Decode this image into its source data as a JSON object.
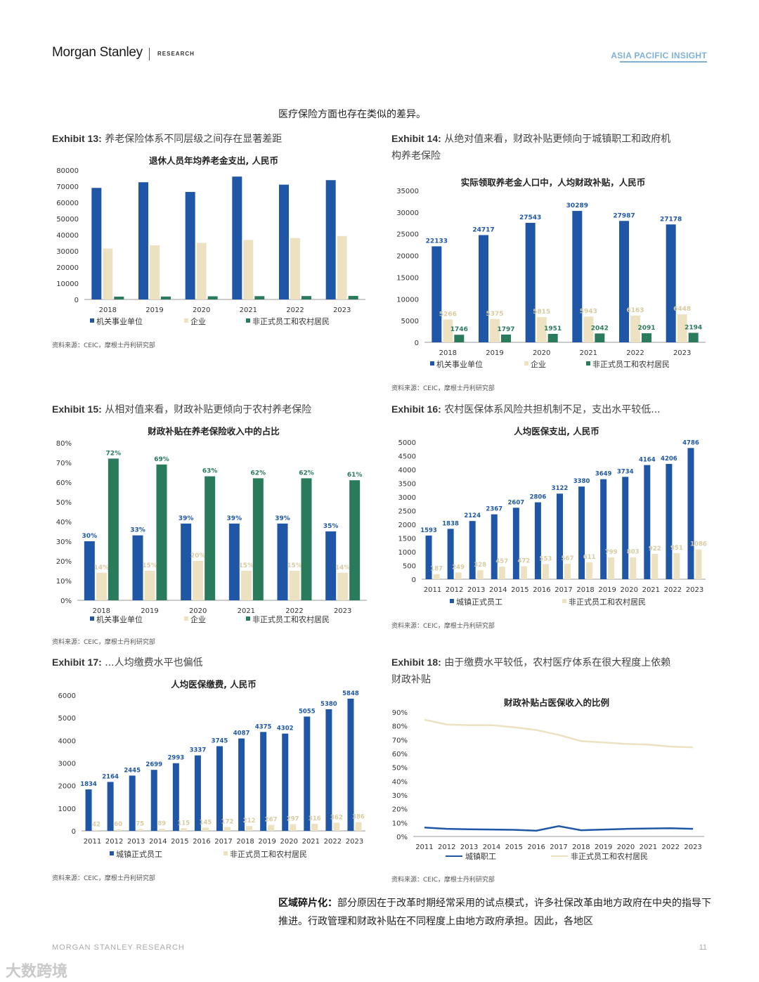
{
  "header": {
    "brand": "Morgan Stanley",
    "research": "RESEARCH",
    "insight": "ASIA PACIFIC INSIGHT"
  },
  "intro": "医疗保险方面也存在类似的差异。",
  "exhibits": {
    "e13": {
      "label": "Exhibit 13:",
      "title": "养老保险体系不同层级之间存在显著差距",
      "source": "资料来源：CEIC，摩根士丹利研究部"
    },
    "e14": {
      "label": "Exhibit 14:",
      "title": "从绝对值来看，财政补贴更倾向于城镇职工和政府机",
      "title2": "构养老保险",
      "source": "资料来源：CEIC，摩根士丹利研究部"
    },
    "e15": {
      "label": "Exhibit 15:",
      "title": "从相对值来看，财政补贴更倾向于农村养老保险",
      "source": "资料来源：CEIC，摩根士丹利研究部"
    },
    "e16": {
      "label": "Exhibit 16:",
      "title": "农村医保体系风险共担机制不足，支出水平较低...",
      "source": "资料来源：CEIC，摩根士丹利研究部"
    },
    "e17": {
      "label": "Exhibit 17:",
      "title": "...人均缴费水平也偏低",
      "source": "资料来源：CEIC，摩根士丹利研究部"
    },
    "e18": {
      "label": "Exhibit 18:",
      "title": "由于缴费水平较低，农村医疗体系在很大程度上依赖",
      "title2": "财政补贴",
      "source": "资料来源：CEIC，摩根士丹利研究部"
    }
  },
  "chart_data": [
    {
      "id": "e13",
      "type": "bar",
      "title": "退休人员年均养老金支出, 人民币",
      "categories": [
        "2018",
        "2019",
        "2020",
        "2021",
        "2022",
        "2023"
      ],
      "series": [
        {
          "name": "机关事业单位",
          "values": [
            69000,
            72500,
            66500,
            76000,
            71000,
            73800
          ]
        },
        {
          "name": "企业",
          "values": [
            31500,
            33500,
            35000,
            36800,
            38000,
            39200
          ]
        },
        {
          "name": "非正式员工和农村居民",
          "values": [
            1746,
            1797,
            1951,
            2042,
            2091,
            2194
          ]
        }
      ],
      "ylim": [
        0,
        80000
      ],
      "yticks": [
        "0",
        "10000",
        "20000",
        "30000",
        "40000",
        "50000",
        "60000",
        "70000",
        "80000"
      ],
      "legend": "bottom",
      "colors": [
        "#1f57a6",
        "#ece1c0",
        "#2a7a5c"
      ]
    },
    {
      "id": "e14",
      "type": "bar",
      "title": "实际领取养老金人口中，人均财政补贴，人民币",
      "categories": [
        "2018",
        "2019",
        "2020",
        "2021",
        "2022",
        "2023"
      ],
      "series": [
        {
          "name": "机关事业单位",
          "values": [
            22133,
            24717,
            27543,
            30289,
            27987,
            27178
          ],
          "labels": [
            "22133",
            "24717",
            "27543",
            "30289",
            "27987",
            "27178"
          ]
        },
        {
          "name": "企业",
          "values": [
            5266,
            5375,
            5815,
            5943,
            6163,
            6448
          ],
          "labels": [
            "5266",
            "5375",
            "5815",
            "5943",
            "6163",
            "6448"
          ]
        },
        {
          "name": "非正式员工和农村居民",
          "values": [
            1746,
            1797,
            1951,
            2042,
            2091,
            2194
          ],
          "labels": [
            "1746",
            "1797",
            "1951",
            "2042",
            "2091",
            "2194"
          ]
        }
      ],
      "ylim": [
        0,
        35000
      ],
      "yticks": [
        "0",
        "5000",
        "10000",
        "15000",
        "20000",
        "25000",
        "30000",
        "35000"
      ],
      "legend": "bottom",
      "colors": [
        "#1f57a6",
        "#ece1c0",
        "#2a7a5c"
      ]
    },
    {
      "id": "e15",
      "type": "bar",
      "title": "财政补贴在养老保险收入中的占比",
      "categories": [
        "2018",
        "2019",
        "2020",
        "2021",
        "2022",
        "2023"
      ],
      "series": [
        {
          "name": "机关事业单位",
          "values": [
            30,
            33,
            39,
            39,
            39,
            35
          ],
          "labels": [
            "30%",
            "33%",
            "39%",
            "39%",
            "39%",
            "35%"
          ]
        },
        {
          "name": "企业",
          "values": [
            14,
            15,
            20,
            15,
            15,
            14
          ],
          "labels": [
            "14%",
            "15%",
            "20%",
            "15%",
            "15%",
            "14%"
          ]
        },
        {
          "name": "非正式员工和农村居民",
          "values": [
            72,
            69,
            63,
            62,
            62,
            61
          ],
          "labels": [
            "72%",
            "69%",
            "63%",
            "62%",
            "62%",
            "61%"
          ]
        }
      ],
      "ylim": [
        0,
        80
      ],
      "yticks": [
        "0%",
        "10%",
        "20%",
        "30%",
        "40%",
        "50%",
        "60%",
        "70%",
        "80%"
      ],
      "legend": "bottom",
      "colors": [
        "#1f57a6",
        "#ece1c0",
        "#2a7a5c"
      ]
    },
    {
      "id": "e16",
      "type": "bar",
      "title": "人均医保支出, 人民币",
      "categories": [
        "2011",
        "2012",
        "2013",
        "2014",
        "2015",
        "2016",
        "2017",
        "2018",
        "2019",
        "2020",
        "2021",
        "2022",
        "2023"
      ],
      "series": [
        {
          "name": "城镇正式员工",
          "values": [
            1593,
            1838,
            2124,
            2367,
            2607,
            2806,
            3122,
            3380,
            3649,
            3734,
            4164,
            4206,
            4786
          ],
          "labels": [
            "1593",
            "1838",
            "2124",
            "2367",
            "2607",
            "2806",
            "3122",
            "3380",
            "3649",
            "3734",
            "4164",
            "4206",
            "4786"
          ]
        },
        {
          "name": "非正式员工和农村居民",
          "values": [
            187,
            249,
            328,
            457,
            472,
            553,
            567,
            611,
            799,
            803,
            922,
            951,
            1086
          ],
          "labels": [
            "187",
            "249",
            "328",
            "457",
            "472",
            "553",
            "567",
            "611",
            "799",
            "803",
            "922",
            "951",
            "1086"
          ]
        }
      ],
      "ylim": [
        0,
        5000
      ],
      "yticks": [
        "0",
        "500",
        "1000",
        "1500",
        "2000",
        "2500",
        "3000",
        "3500",
        "4000",
        "4500",
        "5000"
      ],
      "legend": "bottom",
      "colors": [
        "#1f57a6",
        "#ece1c0"
      ]
    },
    {
      "id": "e17",
      "type": "bar",
      "title": "人均医保缴费, 人民币",
      "categories": [
        "2011",
        "2012",
        "2013",
        "2014",
        "2015",
        "2016",
        "2017",
        "2018",
        "2019",
        "2020",
        "2021",
        "2022",
        "2023"
      ],
      "series": [
        {
          "name": "城镇正式员工",
          "values": [
            1834,
            2164,
            2445,
            2699,
            2993,
            3337,
            3745,
            4087,
            4375,
            4302,
            5055,
            5380,
            5848
          ],
          "labels": [
            "1834",
            "2164",
            "2445",
            "2699",
            "2993",
            "3337",
            "3745",
            "4087",
            "4375",
            "4302",
            "5055",
            "5380",
            "5848"
          ]
        },
        {
          "name": "非正式员工和农村居民",
          "values": [
            42,
            60,
            75,
            89,
            115,
            145,
            172,
            212,
            267,
            297,
            316,
            362,
            386
          ],
          "labels": [
            "42",
            "60",
            "75",
            "89",
            "115",
            "145",
            "172",
            "212",
            "267",
            "297",
            "316",
            "362",
            "386"
          ]
        }
      ],
      "ylim": [
        0,
        6000
      ],
      "yticks": [
        "0",
        "1000",
        "2000",
        "3000",
        "4000",
        "5000",
        "6000"
      ],
      "legend": "bottom",
      "colors": [
        "#1f57a6",
        "#ece1c0"
      ]
    },
    {
      "id": "e18",
      "type": "line",
      "title": "财政补贴占医保收入的比例",
      "categories": [
        "2011",
        "2012",
        "2013",
        "2014",
        "2015",
        "2016",
        "2017",
        "2018",
        "2019",
        "2020",
        "2021",
        "2022",
        "2023"
      ],
      "series": [
        {
          "name": "城镇职工",
          "values": [
            6.5,
            5.5,
            5.2,
            5.0,
            4.8,
            4.2,
            7.5,
            4.5,
            5.0,
            5.5,
            5.8,
            6.0,
            5.5
          ]
        },
        {
          "name": "非正式员工和农村居民",
          "values": [
            84.5,
            81,
            80.5,
            80.5,
            79,
            77,
            73.5,
            69,
            68,
            67,
            66.5,
            65,
            64.5
          ]
        }
      ],
      "ylim": [
        0,
        90
      ],
      "yticks": [
        "0%",
        "10%",
        "20%",
        "30%",
        "40%",
        "50%",
        "60%",
        "70%",
        "80%",
        "90%"
      ],
      "legend": "bottom",
      "colors": [
        "#1f57a6",
        "#ece1c0"
      ]
    }
  ],
  "paragraph": {
    "bold": "区域碎片化：",
    "text": "部分原因在于改革时期经常采用的试点模式，许多社保改革由地方政府在中央的指导下推进。行政管理和财政补贴在不同程度上由地方政府承担。因此，各地区"
  },
  "footer": {
    "left": "MORGAN STANLEY RESEARCH",
    "page": "11"
  },
  "watermark": "大数跨境"
}
